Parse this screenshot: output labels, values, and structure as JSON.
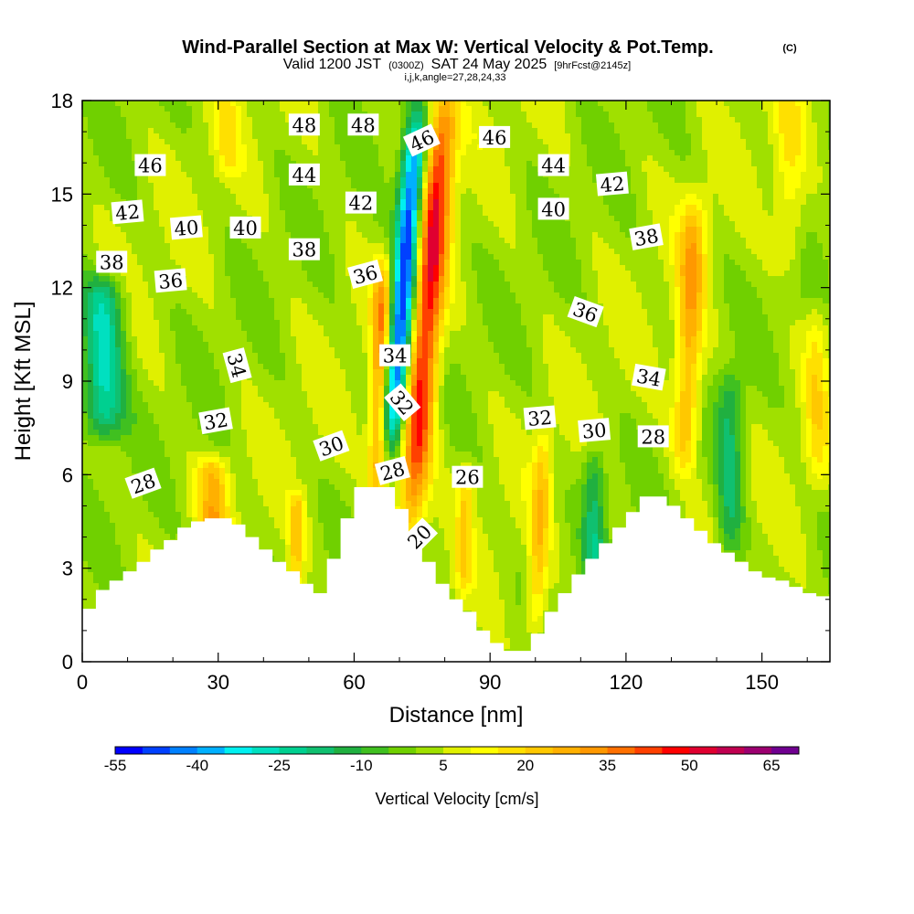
{
  "title": {
    "main": "Wind-Parallel Section at Max W: Vertical Velocity & Pot.Temp.",
    "copyright": "(C)",
    "valid_prefix": "Valid 1200 JST",
    "valid_utc": "(0300Z)",
    "valid_date": "SAT 24 May 2025",
    "forecast": "[9hrFcst@2145z]",
    "indices": "i,j,k,angle=27,28,24,33"
  },
  "chart_data": {
    "type": "heatmap",
    "xlabel": "Distance [nm]",
    "ylabel": "Height [Kft MSL]",
    "xlim": [
      0,
      165
    ],
    "ylim": [
      0,
      18
    ],
    "x_ticks": [
      "0",
      "30",
      "60",
      "90",
      "120",
      "150"
    ],
    "x_tick_values": [
      0,
      30,
      60,
      90,
      120,
      150
    ],
    "y_ticks": [
      "0",
      "3",
      "6",
      "9",
      "12",
      "15",
      "18"
    ],
    "y_tick_values": [
      0,
      3,
      6,
      9,
      12,
      15,
      18
    ],
    "colorbar": {
      "title": "Vertical Velocity [cm/s]",
      "tick_labels": [
        "-55",
        "-40",
        "-25",
        "-10",
        "5",
        "20",
        "35",
        "50",
        "65"
      ],
      "tick_values": [
        -55,
        -40,
        -25,
        -10,
        5,
        20,
        35,
        50,
        65
      ],
      "range": [
        -55,
        70
      ],
      "step": 5,
      "colors": [
        "#0000ff",
        "#0040ff",
        "#0080ff",
        "#00b0ff",
        "#00f0f0",
        "#00e0c0",
        "#00d090",
        "#10c070",
        "#20b040",
        "#40c020",
        "#70d000",
        "#a0e000",
        "#e0f000",
        "#ffff00",
        "#ffe000",
        "#ffc800",
        "#ffb000",
        "#ff9800",
        "#ff7000",
        "#ff4000",
        "#ff0000",
        "#e00030",
        "#c00050",
        "#9c0070",
        "#700090"
      ]
    },
    "terrain_profile": {
      "x": [
        0,
        3,
        6,
        9,
        12,
        15,
        18,
        21,
        24,
        27,
        30,
        33,
        36,
        39,
        42,
        45,
        48,
        51,
        54,
        57,
        60,
        63,
        66,
        69,
        72,
        75,
        78,
        81,
        84,
        87,
        90,
        93,
        96,
        99,
        102,
        105,
        108,
        111,
        114,
        117,
        120,
        123,
        126,
        129,
        132,
        135,
        138,
        141,
        144,
        147,
        150,
        153,
        156,
        159,
        162,
        165
      ],
      "height_kft": [
        1.7,
        2.3,
        2.6,
        2.9,
        3.2,
        3.6,
        3.9,
        4.3,
        4.5,
        4.6,
        4.6,
        4.4,
        4.0,
        3.6,
        3.2,
        2.9,
        2.5,
        2.2,
        3.3,
        4.6,
        5.6,
        5.6,
        5.6,
        4.9,
        4.0,
        3.2,
        2.5,
        2.0,
        1.6,
        1.0,
        0.6,
        0.35,
        0.35,
        0.9,
        1.6,
        2.2,
        2.8,
        3.3,
        3.8,
        4.3,
        4.8,
        5.3,
        5.3,
        5.0,
        4.6,
        4.2,
        3.8,
        3.5,
        3.2,
        2.9,
        2.7,
        2.6,
        2.4,
        2.2,
        2.1,
        2.1
      ]
    },
    "theta_isentropes": [
      {
        "theta": 20,
        "pts": [
          [
            70,
            1.3
          ],
          [
            76,
            4.5
          ],
          [
            82,
            3.2
          ],
          [
            94,
            2.5
          ]
        ]
      },
      {
        "theta": 26,
        "pts": [
          [
            68,
            5.6
          ],
          [
            80,
            5.8
          ],
          [
            95,
            6.0
          ],
          [
            120,
            5.7
          ],
          [
            150,
            5.2
          ],
          [
            165,
            5.1
          ]
        ]
      },
      {
        "theta": 28,
        "pts": [
          [
            0,
            5.0
          ],
          [
            20,
            5.6
          ],
          [
            40,
            5.4
          ],
          [
            60,
            6.0
          ],
          [
            68,
            6.2
          ],
          [
            90,
            6.5
          ],
          [
            115,
            6.5
          ],
          [
            130,
            7.0
          ],
          [
            150,
            6.2
          ],
          [
            165,
            6.0
          ]
        ]
      },
      {
        "theta": 30,
        "pts": [
          [
            0,
            6.1
          ],
          [
            25,
            6.8
          ],
          [
            45,
            6.6
          ],
          [
            65,
            7.0
          ],
          [
            90,
            7.2
          ],
          [
            110,
            7.3
          ],
          [
            130,
            7.6
          ],
          [
            150,
            7.0
          ],
          [
            165,
            6.9
          ]
        ]
      },
      {
        "theta": 32,
        "pts": [
          [
            0,
            7.3
          ],
          [
            25,
            7.8
          ],
          [
            45,
            7.6
          ],
          [
            65,
            8.0
          ],
          [
            90,
            7.8
          ],
          [
            110,
            8.1
          ],
          [
            130,
            8.7
          ],
          [
            150,
            8.0
          ],
          [
            165,
            7.9
          ]
        ]
      },
      {
        "theta": 34,
        "pts": [
          [
            0,
            8.6
          ],
          [
            25,
            9.2
          ],
          [
            45,
            9.3
          ],
          [
            62,
            9.6
          ],
          [
            90,
            9.0
          ],
          [
            120,
            9.3
          ],
          [
            135,
            10.2
          ],
          [
            150,
            9.4
          ],
          [
            165,
            9.3
          ]
        ]
      },
      {
        "theta": 36,
        "pts": [
          [
            0,
            11.3
          ],
          [
            20,
            11.8
          ],
          [
            45,
            11.6
          ],
          [
            62,
            12.0
          ],
          [
            75,
            11.4
          ],
          [
            100,
            11.2
          ],
          [
            130,
            11.6
          ],
          [
            150,
            11.4
          ],
          [
            165,
            11.3
          ]
        ]
      },
      {
        "theta": 38,
        "pts": [
          [
            0,
            12.5
          ],
          [
            25,
            12.8
          ],
          [
            45,
            13.0
          ],
          [
            62,
            13.4
          ],
          [
            80,
            12.9
          ],
          [
            110,
            12.8
          ],
          [
            130,
            13.4
          ],
          [
            150,
            13.2
          ],
          [
            165,
            13.1
          ]
        ]
      },
      {
        "theta": 40,
        "pts": [
          [
            0,
            13.3
          ],
          [
            25,
            13.8
          ],
          [
            45,
            13.9
          ],
          [
            62,
            14.2
          ],
          [
            85,
            14.0
          ],
          [
            110,
            14.1
          ],
          [
            130,
            14.4
          ],
          [
            165,
            14.3
          ]
        ]
      },
      {
        "theta": 42,
        "pts": [
          [
            0,
            14.2
          ],
          [
            25,
            14.6
          ],
          [
            45,
            14.8
          ],
          [
            62,
            15.1
          ],
          [
            85,
            14.9
          ],
          [
            115,
            15.0
          ],
          [
            140,
            15.3
          ],
          [
            165,
            15.1
          ]
        ]
      },
      {
        "theta": 44,
        "pts": [
          [
            0,
            15.1
          ],
          [
            25,
            15.4
          ],
          [
            45,
            15.5
          ],
          [
            62,
            15.7
          ],
          [
            85,
            15.6
          ],
          [
            115,
            15.8
          ],
          [
            165,
            15.7
          ]
        ]
      },
      {
        "theta": 46,
        "pts": [
          [
            0,
            15.9
          ],
          [
            25,
            16.2
          ],
          [
            45,
            16.3
          ],
          [
            62,
            16.6
          ],
          [
            85,
            16.4
          ],
          [
            115,
            16.5
          ],
          [
            165,
            16.4
          ]
        ]
      },
      {
        "theta": 48,
        "pts": [
          [
            0,
            16.8
          ],
          [
            25,
            17.0
          ],
          [
            45,
            17.1
          ],
          [
            62,
            17.3
          ],
          [
            85,
            17.2
          ],
          [
            115,
            17.3
          ],
          [
            165,
            17.2
          ]
        ]
      }
    ],
    "contour_labels": [
      {
        "text": "46",
        "x": 15,
        "y": 15.9,
        "angle": 0
      },
      {
        "text": "42",
        "x": 10,
        "y": 14.4,
        "angle": -5
      },
      {
        "text": "38",
        "x": 6.5,
        "y": 12.8,
        "angle": 0
      },
      {
        "text": "40",
        "x": 23,
        "y": 13.9,
        "angle": -5
      },
      {
        "text": "40",
        "x": 36,
        "y": 13.9,
        "angle": 0
      },
      {
        "text": "36",
        "x": 19.5,
        "y": 12.2,
        "angle": -5
      },
      {
        "text": "48",
        "x": 49,
        "y": 17.2,
        "angle": 0
      },
      {
        "text": "48",
        "x": 62,
        "y": 17.2,
        "angle": 0
      },
      {
        "text": "44",
        "x": 49,
        "y": 15.6,
        "angle": 0
      },
      {
        "text": "42",
        "x": 61.5,
        "y": 14.7,
        "angle": 0
      },
      {
        "text": "38",
        "x": 49,
        "y": 13.2,
        "angle": 0
      },
      {
        "text": "36",
        "x": 62.5,
        "y": 12.4,
        "angle": -15
      },
      {
        "text": "46",
        "x": 75,
        "y": 16.7,
        "angle": -25
      },
      {
        "text": "46",
        "x": 91,
        "y": 16.8,
        "angle": 0
      },
      {
        "text": "44",
        "x": 104,
        "y": 15.9,
        "angle": 0
      },
      {
        "text": "42",
        "x": 117,
        "y": 15.3,
        "angle": -5
      },
      {
        "text": "40",
        "x": 104,
        "y": 14.5,
        "angle": 0
      },
      {
        "text": "38",
        "x": 124.5,
        "y": 13.6,
        "angle": -10
      },
      {
        "text": "36",
        "x": 111,
        "y": 11.2,
        "angle": 20
      },
      {
        "text": "34",
        "x": 34,
        "y": 9.5,
        "angle": 75
      },
      {
        "text": "34",
        "x": 69,
        "y": 9.8,
        "angle": 0
      },
      {
        "text": "34",
        "x": 125,
        "y": 9.1,
        "angle": 10
      },
      {
        "text": "32",
        "x": 29.5,
        "y": 7.7,
        "angle": -10
      },
      {
        "text": "32",
        "x": 70.5,
        "y": 8.3,
        "angle": 50
      },
      {
        "text": "32",
        "x": 101,
        "y": 7.8,
        "angle": -5
      },
      {
        "text": "30",
        "x": 55,
        "y": 6.9,
        "angle": -20
      },
      {
        "text": "30",
        "x": 113,
        "y": 7.4,
        "angle": -5
      },
      {
        "text": "28",
        "x": 13.5,
        "y": 5.7,
        "angle": -20
      },
      {
        "text": "28",
        "x": 68.5,
        "y": 6.1,
        "angle": -15
      },
      {
        "text": "28",
        "x": 126,
        "y": 7.2,
        "angle": 0
      },
      {
        "text": "26",
        "x": 85,
        "y": 5.9,
        "angle": 0
      },
      {
        "text": "20",
        "x": 74.5,
        "y": 4.0,
        "angle": -45
      }
    ],
    "vertical_velocity_features": [
      {
        "name": "updraft-column",
        "x_center": 72.5,
        "x_halfwidth": 4,
        "y_bottom": 4.5,
        "y_top": 18,
        "slope": 0.55,
        "value": 45
      },
      {
        "name": "downdraft-column",
        "x_center": 68.5,
        "x_halfwidth": 3.2,
        "y_bottom": 7.5,
        "y_top": 17,
        "slope": 0.55,
        "value": -55
      },
      {
        "name": "updraft-lower-left",
        "x_center": 65,
        "x_halfwidth": 2.5,
        "y_bottom": 5.5,
        "y_top": 12.5,
        "slope": 0.2,
        "value": 30
      },
      {
        "name": "downdraft-west-edge",
        "x_center": 4.5,
        "x_halfwidth": 5.5,
        "y_bottom": 7.5,
        "y_top": 12,
        "slope": 0,
        "value": -30
      },
      {
        "name": "updraft-east-ridge",
        "x_center": 133,
        "x_halfwidth": 3.5,
        "y_bottom": 6.5,
        "y_top": 14.5,
        "slope": 0.25,
        "value": 25
      },
      {
        "name": "updraft-valley",
        "x_center": 100,
        "x_halfwidth": 2.5,
        "y_bottom": 1.0,
        "y_top": 7,
        "slope": 0.3,
        "value": 18
      },
      {
        "name": "updraft-valley-b",
        "x_center": 84,
        "x_halfwidth": 2,
        "y_bottom": 2.5,
        "y_top": 6,
        "slope": 0.2,
        "value": 15
      },
      {
        "name": "updraft-left-hills",
        "x_center": 29,
        "x_halfwidth": 4,
        "y_bottom": 4.2,
        "y_top": 6.2,
        "slope": 0,
        "value": 22
      },
      {
        "name": "updraft-left-b",
        "x_center": 47,
        "x_halfwidth": 2,
        "y_bottom": 2.5,
        "y_top": 5,
        "slope": 0.2,
        "value": 18
      },
      {
        "name": "downdraft-east-ridge",
        "x_center": 143,
        "x_halfwidth": 3.5,
        "y_bottom": 3.5,
        "y_top": 9,
        "slope": 0,
        "value": -18
      },
      {
        "name": "downdraft-lower-mid",
        "x_center": 113,
        "x_halfwidth": 3,
        "y_bottom": 3.0,
        "y_top": 6.5,
        "slope": 0,
        "value": -18
      },
      {
        "name": "updraft-top-left",
        "x_center": 32,
        "x_halfwidth": 3,
        "y_bottom": 16,
        "y_top": 18,
        "slope": 0,
        "value": 10
      },
      {
        "name": "updraft-upper-right",
        "x_center": 156,
        "x_halfwidth": 4,
        "y_bottom": 13,
        "y_top": 18,
        "slope": 0,
        "value": 12
      },
      {
        "name": "updraft-right-edge",
        "x_center": 162,
        "x_halfwidth": 3,
        "y_bottom": 6,
        "y_top": 11,
        "slope": 0,
        "value": 12
      }
    ]
  }
}
